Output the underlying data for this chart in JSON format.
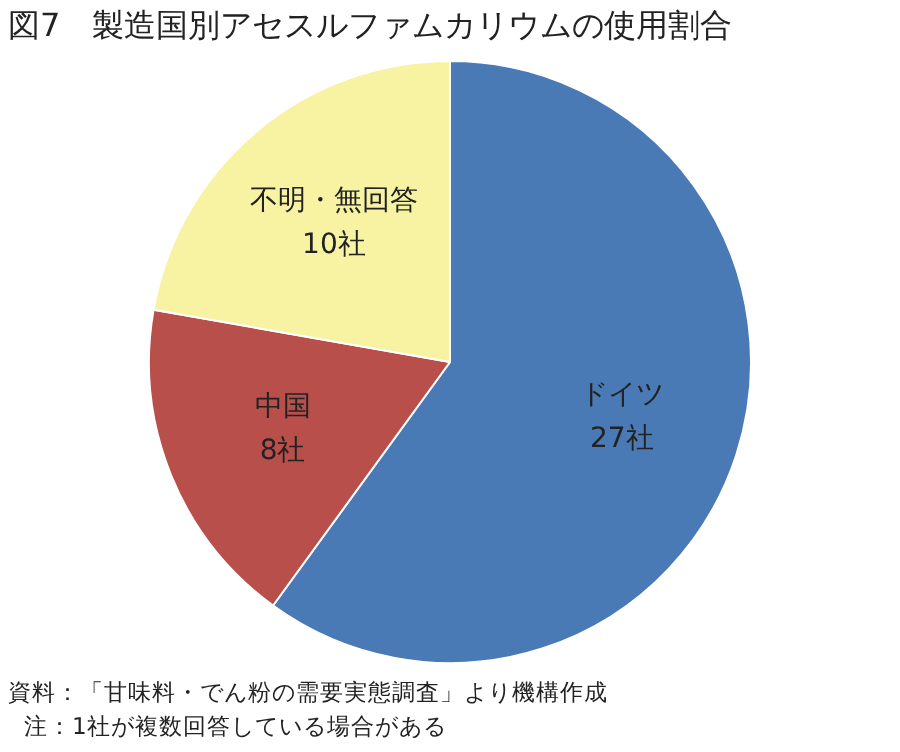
{
  "chart_data": {
    "type": "pie",
    "title": "図7　製造国別アセスルファムカリウムの使用割合",
    "categories": [
      "ドイツ",
      "中国",
      "不明・無回答"
    ],
    "values": [
      27,
      8,
      10
    ],
    "value_labels": [
      "27社",
      "8社",
      "10社"
    ],
    "colors": [
      "#4a7ab5",
      "#b94f4a",
      "#f7f3a3"
    ],
    "legend": false,
    "annotations": [
      "資料：「甘味料・でん粉の需要実態調査」より機構作成",
      "注：1社が複数回答している場合がある"
    ]
  }
}
